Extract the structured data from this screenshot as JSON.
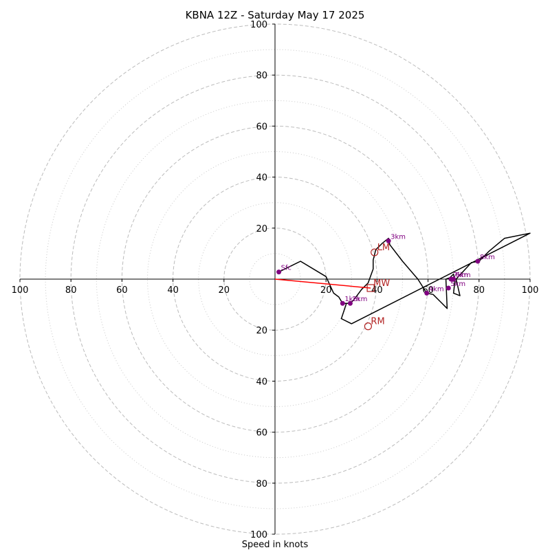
{
  "chart_data": {
    "type": "line",
    "title": "KBNA 12Z - Saturday May 17 2025",
    "xlabel": "Speed in knots",
    "ylabel": "",
    "xlim": [
      -100,
      100
    ],
    "ylim": [
      -100,
      100
    ],
    "rings_major": [
      20,
      40,
      60,
      80,
      100
    ],
    "rings_minor": [
      10,
      30,
      50,
      70,
      90
    ],
    "grid": true,
    "x_ticks": [
      {
        "value": -100,
        "label": "100"
      },
      {
        "value": -80,
        "label": "80"
      },
      {
        "value": -60,
        "label": "60"
      },
      {
        "value": -40,
        "label": "40"
      },
      {
        "value": -20,
        "label": "20"
      },
      {
        "value": 20,
        "label": "20"
      },
      {
        "value": 40,
        "label": "40"
      },
      {
        "value": 60,
        "label": "60"
      },
      {
        "value": 80,
        "label": "80"
      },
      {
        "value": 100,
        "label": "100"
      }
    ],
    "y_ticks": [
      {
        "value": 100,
        "label": "100"
      },
      {
        "value": 80,
        "label": "80"
      },
      {
        "value": 60,
        "label": "60"
      },
      {
        "value": 40,
        "label": "40"
      },
      {
        "value": 20,
        "label": "20"
      },
      {
        "value": -20,
        "label": "20"
      },
      {
        "value": -40,
        "label": "40"
      },
      {
        "value": -60,
        "label": "60"
      },
      {
        "value": -80,
        "label": "80"
      },
      {
        "value": -100,
        "label": "100"
      }
    ],
    "hodograph": {
      "color": "#000000",
      "points": [
        [
          1.5,
          2.8
        ],
        [
          10,
          7
        ],
        [
          20,
          1
        ],
        [
          23,
          -5.5
        ],
        [
          25,
          -7
        ],
        [
          26.5,
          -9.5
        ],
        [
          29.5,
          -9.5
        ],
        [
          31,
          -8
        ],
        [
          34,
          -4
        ],
        [
          36.5,
          -1.5
        ],
        [
          38.5,
          4
        ],
        [
          38.5,
          7.5
        ],
        [
          39,
          9.5
        ],
        [
          39.5,
          11.5
        ],
        [
          42,
          14
        ],
        [
          44.5,
          16
        ],
        [
          45,
          13.5
        ],
        [
          50,
          7
        ],
        [
          56,
          0
        ],
        [
          59.5,
          -5.5
        ],
        [
          62,
          -6
        ],
        [
          65,
          -9
        ],
        [
          67.5,
          -11.5
        ],
        [
          67,
          0
        ],
        [
          68.5,
          0.5
        ],
        [
          70,
          2
        ],
        [
          70.5,
          -1
        ],
        [
          70,
          -5.5
        ],
        [
          72.5,
          -6.5
        ],
        [
          71,
          0
        ],
        [
          77,
          6.5
        ],
        [
          80,
          7
        ],
        [
          84,
          11
        ],
        [
          90,
          16
        ],
        [
          100,
          18
        ],
        [
          100,
          18
        ],
        [
          30,
          -17.5
        ],
        [
          26,
          -15.5
        ],
        [
          28,
          -9.5
        ]
      ]
    },
    "heights": {
      "color": "#800080",
      "labels": [
        {
          "label": "Sfc",
          "x": 1.5,
          "y": 2.8
        },
        {
          "label": "1km",
          "x": 26.5,
          "y": -9.5
        },
        {
          "label": "2km",
          "x": 29.5,
          "y": -9.5
        },
        {
          "label": "3km",
          "x": 44.5,
          "y": 15
        },
        {
          "label": "4km",
          "x": 59.5,
          "y": -5.5
        },
        {
          "label": "5km",
          "x": 68,
          "y": -3.5
        },
        {
          "label": "6km",
          "x": 70,
          "y": 0
        },
        {
          "label": "7km",
          "x": 69,
          "y": 0
        },
        {
          "label": "8km",
          "x": 79.5,
          "y": 7
        }
      ]
    },
    "storm_motion": {
      "color": "#b22222",
      "lm": {
        "label": "LM",
        "x": 39,
        "y": 10.5
      },
      "mw": {
        "label": "MW",
        "x": 37.5,
        "y": -3.5
      },
      "rm": {
        "label": "RM",
        "x": 36.5,
        "y": -18.5
      },
      "vector_color": "#ff0000"
    }
  }
}
